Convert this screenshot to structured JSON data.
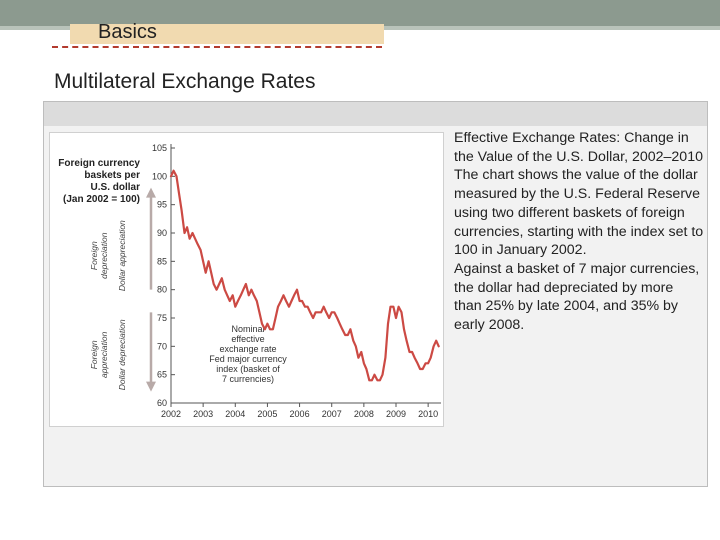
{
  "slide": {
    "section_label": "Basics",
    "title": "Multilateral Exchange Rates"
  },
  "caption": {
    "paragraph1": "Effective Exchange Rates: Change in the Value of the U.S. Dollar, 2002–2010  The chart shows the value of the dollar measured by the U.S. Federal Reserve using two different baskets of foreign currencies, starting with the index set to 100 in January 2002.",
    "paragraph2": "Against a basket of 7 major currencies, the dollar had depreciated by more than 25% by late 2004, and 35% by early 2008."
  },
  "colors": {
    "line": "#cc4a44",
    "arrow": "#b8aaa8",
    "top_bar": "#8c9a8f",
    "tab": "#f1dab0",
    "dash_rule": "#b33b2e"
  },
  "chart_data": {
    "type": "line",
    "title": "Foreign currency baskets per U.S. dollar (Jan 2002 = 100)",
    "xlabel": "",
    "ylabel": "",
    "xlim": [
      2002,
      2010.4
    ],
    "ylim": [
      60,
      105
    ],
    "x_ticks": [
      "2002",
      "2003",
      "2004",
      "2005",
      "2006",
      "2007",
      "2008",
      "2009",
      "2010"
    ],
    "y_ticks": [
      "60",
      "65",
      "70",
      "75",
      "80",
      "85",
      "90",
      "95",
      "100",
      "105"
    ],
    "grid": false,
    "arrow_labels": {
      "upper": [
        "Foreign",
        "depreciation",
        "Dollar appreciation"
      ],
      "lower": [
        "Foreign",
        "appreciation",
        "Dollar depreciation"
      ]
    },
    "annotation": [
      "Nominal",
      "effective",
      "exchange rate",
      "Fed major currency",
      "index (basket of",
      "7 currencies)"
    ],
    "series": [
      {
        "x": [
          2002.0,
          2002.08,
          2002.17,
          2002.25,
          2002.33,
          2002.42,
          2002.5,
          2002.58,
          2002.67,
          2002.75,
          2002.83,
          2002.92,
          2003.0,
          2003.08,
          2003.17,
          2003.25,
          2003.33,
          2003.42,
          2003.5,
          2003.58,
          2003.67,
          2003.75,
          2003.83,
          2003.92,
          2004.0,
          2004.08,
          2004.17,
          2004.25,
          2004.33,
          2004.42,
          2004.5,
          2004.58,
          2004.67,
          2004.75,
          2004.83,
          2004.92,
          2005.0,
          2005.08,
          2005.17,
          2005.25,
          2005.33,
          2005.42,
          2005.5,
          2005.58,
          2005.67,
          2005.75,
          2005.83,
          2005.92,
          2006.0,
          2006.08,
          2006.17,
          2006.25,
          2006.33,
          2006.42,
          2006.5,
          2006.58,
          2006.67,
          2006.75,
          2006.83,
          2006.92,
          2007.0,
          2007.08,
          2007.17,
          2007.25,
          2007.33,
          2007.42,
          2007.5,
          2007.58,
          2007.67,
          2007.75,
          2007.83,
          2007.92,
          2008.0,
          2008.08,
          2008.17,
          2008.25,
          2008.33,
          2008.42,
          2008.5,
          2008.58,
          2008.67,
          2008.75,
          2008.83,
          2008.92,
          2009.0,
          2009.08,
          2009.17,
          2009.25,
          2009.33,
          2009.42,
          2009.5,
          2009.58,
          2009.67,
          2009.75,
          2009.83,
          2009.92,
          2010.0,
          2010.08,
          2010.17,
          2010.25,
          2010.33
        ],
        "y": [
          100,
          101,
          100,
          97,
          94,
          90,
          91,
          89,
          90,
          89,
          88,
          87,
          85,
          83,
          85,
          83,
          81,
          80,
          81,
          82,
          80,
          79,
          78,
          79,
          77,
          78,
          79,
          80,
          81,
          79,
          80,
          79,
          78,
          76,
          74,
          73,
          74,
          73,
          73,
          75,
          77,
          78,
          79,
          78,
          77,
          78,
          79,
          80,
          78,
          78,
          77,
          77,
          76,
          75,
          76,
          76,
          76,
          77,
          76,
          75,
          76,
          76,
          75,
          74,
          73,
          72,
          72,
          73,
          71,
          70,
          68,
          69,
          67,
          66,
          64,
          64,
          65,
          64,
          64,
          65,
          68,
          74,
          77,
          77,
          75,
          77,
          76,
          73,
          71,
          69,
          69,
          68,
          67,
          66,
          66,
          67,
          67,
          68,
          70,
          71,
          70
        ]
      }
    ]
  }
}
